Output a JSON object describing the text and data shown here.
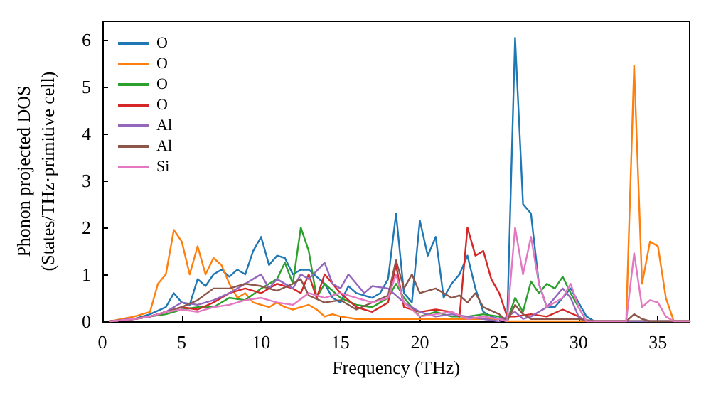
{
  "chart_data": {
    "type": "line",
    "xlabel": "Frequency (THz)",
    "ylabel": "Phonon projected DOS\n(States/THz·primitive cell)",
    "xlim": [
      0,
      37
    ],
    "xticks": [
      0,
      5,
      10,
      15,
      20,
      25,
      30,
      35
    ],
    "ylim": [
      0,
      6.4
    ],
    "yticks": [
      0,
      1,
      2,
      3,
      4,
      5,
      6
    ],
    "grid": false,
    "legend": "top left",
    "marker": "none",
    "line_style": "solid",
    "series": [
      {
        "name": "O",
        "color": "#1f77b4",
        "x": [
          0.5,
          2,
          3,
          4,
          4.5,
          5,
          5.5,
          6,
          6.5,
          7,
          7.5,
          8,
          8.5,
          9,
          9.5,
          10,
          10.5,
          11,
          11.5,
          12,
          12.5,
          13,
          13.5,
          14,
          14.5,
          15,
          15.5,
          16,
          16.5,
          17,
          17.5,
          18,
          18.5,
          19,
          19.5,
          20,
          20.5,
          21,
          21.5,
          22,
          22.5,
          23,
          23.5,
          24,
          24.5,
          25,
          25.5,
          26,
          26.5,
          27,
          27.5,
          28,
          28.5,
          29,
          29.5,
          30,
          30.5,
          31,
          37
        ],
        "values": [
          0,
          0.05,
          0.15,
          0.3,
          0.6,
          0.4,
          0.35,
          0.9,
          0.75,
          1.0,
          1.1,
          0.95,
          1.1,
          1.0,
          1.5,
          1.8,
          1.2,
          1.4,
          1.35,
          1.0,
          1.1,
          1.1,
          0.95,
          0.8,
          0.5,
          0.4,
          0.75,
          0.6,
          0.55,
          0.5,
          0.6,
          0.9,
          2.3,
          0.6,
          0.4,
          2.15,
          1.4,
          1.8,
          0.5,
          0.8,
          1.0,
          1.4,
          0.7,
          0.2,
          0.1,
          0.05,
          0,
          6.05,
          2.5,
          2.3,
          0.8,
          0.3,
          0.3,
          0.5,
          0.7,
          0.4,
          0.1,
          0,
          0
        ]
      },
      {
        "name": "O",
        "color": "#ff7f0e",
        "x": [
          0.5,
          2,
          3,
          3.5,
          4,
          4.5,
          5,
          5.5,
          6,
          6.5,
          7,
          7.5,
          8,
          8.5,
          9,
          9.5,
          10,
          10.5,
          11,
          11.5,
          12,
          12.5,
          13,
          13.5,
          14,
          14.5,
          15,
          16,
          18,
          20,
          22,
          24,
          25,
          25.5,
          33,
          33.5,
          34,
          34.5,
          35,
          35.5,
          36,
          37
        ],
        "values": [
          0,
          0.1,
          0.2,
          0.8,
          1.0,
          1.95,
          1.7,
          1.0,
          1.6,
          1.0,
          1.35,
          1.2,
          0.8,
          0.5,
          0.6,
          0.4,
          0.35,
          0.3,
          0.4,
          0.3,
          0.25,
          0.3,
          0.35,
          0.25,
          0.1,
          0.15,
          0.1,
          0.05,
          0.05,
          0.05,
          0.05,
          0.05,
          0.05,
          0,
          0,
          5.45,
          0.8,
          1.7,
          1.6,
          0.5,
          0,
          0
        ]
      },
      {
        "name": "O",
        "color": "#2ca02c",
        "x": [
          0.5,
          2,
          3,
          4,
          5,
          6,
          7,
          8,
          9,
          10,
          10.5,
          11,
          11.5,
          12,
          12.5,
          13,
          13.5,
          14,
          15,
          16,
          17,
          17.5,
          18,
          18.5,
          19,
          20,
          21,
          22,
          23,
          24,
          25,
          25.5,
          26,
          26.5,
          27,
          27.5,
          28,
          28.5,
          29,
          29.5,
          30,
          30.5,
          37
        ],
        "values": [
          0,
          0.05,
          0.1,
          0.15,
          0.25,
          0.3,
          0.3,
          0.5,
          0.45,
          0.7,
          0.8,
          0.9,
          1.25,
          0.8,
          2.0,
          1.5,
          0.5,
          0.8,
          0.5,
          0.35,
          0.3,
          0.4,
          0.5,
          0.8,
          0.5,
          0.1,
          0.2,
          0.1,
          0.1,
          0.15,
          0.1,
          0,
          0.5,
          0.2,
          0.85,
          0.6,
          0.8,
          0.7,
          0.95,
          0.6,
          0.3,
          0,
          0
        ]
      },
      {
        "name": "O",
        "color": "#d62728",
        "x": [
          0.5,
          2,
          3,
          4,
          5,
          6,
          7,
          8,
          9,
          10,
          11,
          12,
          12.5,
          13,
          13.5,
          14,
          15,
          16,
          17,
          18,
          18.5,
          19,
          20,
          21,
          22,
          22.5,
          23,
          23.5,
          24,
          24.5,
          25,
          25.5,
          26,
          27,
          28,
          29,
          30,
          30.5,
          37
        ],
        "values": [
          0,
          0.05,
          0.1,
          0.2,
          0.3,
          0.25,
          0.4,
          0.6,
          0.7,
          0.6,
          0.8,
          0.7,
          0.6,
          1.0,
          0.5,
          1.0,
          0.6,
          0.3,
          0.2,
          0.4,
          1.2,
          0.3,
          0.2,
          0.25,
          0.2,
          0.1,
          2.0,
          1.4,
          1.5,
          0.9,
          0.6,
          0.1,
          0.1,
          0.15,
          0.1,
          0.25,
          0.1,
          0,
          0
        ]
      },
      {
        "name": "Al",
        "color": "#9467bd",
        "x": [
          0.5,
          2,
          3,
          4,
          5,
          6,
          7,
          8,
          9,
          9.5,
          10,
          10.5,
          11,
          12,
          12.5,
          13,
          14,
          14.5,
          15,
          15.5,
          16.5,
          17,
          18,
          19,
          20,
          21,
          22,
          23,
          24,
          25,
          26,
          26.5,
          27,
          28,
          29,
          29.5,
          30,
          30.5,
          37
        ],
        "values": [
          0,
          0.05,
          0.1,
          0.2,
          0.4,
          0.35,
          0.45,
          0.6,
          0.8,
          0.9,
          1.0,
          0.7,
          0.9,
          0.7,
          1.0,
          0.9,
          1.25,
          0.8,
          0.7,
          1.0,
          0.6,
          0.75,
          0.7,
          0.4,
          0.2,
          0.1,
          0.15,
          0.1,
          0.05,
          0,
          0.2,
          0.05,
          0.1,
          0.3,
          0.7,
          0.5,
          0.1,
          0,
          0
        ]
      },
      {
        "name": "Al",
        "color": "#8c564b",
        "x": [
          0.5,
          2,
          3,
          4,
          5,
          6,
          7,
          8,
          9,
          10,
          11,
          12,
          12.5,
          13,
          14,
          15,
          16,
          17,
          18,
          18.5,
          19,
          19.5,
          20,
          21,
          22,
          22.5,
          23,
          23.5,
          24,
          25,
          25.5,
          26,
          26.5,
          27,
          30,
          31,
          33,
          33.5,
          34,
          34.5,
          37
        ],
        "values": [
          0,
          0.05,
          0.1,
          0.2,
          0.3,
          0.45,
          0.7,
          0.7,
          0.8,
          0.75,
          0.65,
          0.8,
          0.9,
          0.55,
          0.4,
          0.45,
          0.25,
          0.4,
          0.55,
          1.3,
          0.7,
          1.0,
          0.6,
          0.7,
          0.5,
          0.55,
          0.4,
          0.6,
          0.3,
          0.15,
          0,
          0.35,
          0.15,
          0.05,
          0.05,
          0,
          0,
          0.15,
          0.05,
          0,
          0
        ]
      },
      {
        "name": "Si",
        "color": "#e377c2",
        "x": [
          0.5,
          2,
          3,
          4,
          5,
          6,
          7,
          8,
          9,
          10,
          11,
          12,
          13,
          14,
          15,
          16,
          17,
          18,
          18.5,
          19,
          20,
          21,
          22,
          23,
          24,
          25,
          25.5,
          26,
          26.5,
          27,
          27.5,
          28,
          29,
          29.5,
          30,
          30.5,
          33,
          33.5,
          34,
          34.5,
          35,
          35.5,
          36,
          37
        ],
        "values": [
          0,
          0.05,
          0.1,
          0.2,
          0.25,
          0.2,
          0.3,
          0.35,
          0.45,
          0.5,
          0.4,
          0.35,
          0.6,
          0.5,
          0.6,
          0.5,
          0.4,
          0.5,
          1.0,
          0.4,
          0.1,
          0.15,
          0.2,
          0.05,
          0.1,
          0.05,
          0,
          2.0,
          1.0,
          1.8,
          0.8,
          0.3,
          0.5,
          0.8,
          0.3,
          0,
          0,
          1.45,
          0.3,
          0.45,
          0.4,
          0.1,
          0,
          0
        ]
      }
    ]
  }
}
